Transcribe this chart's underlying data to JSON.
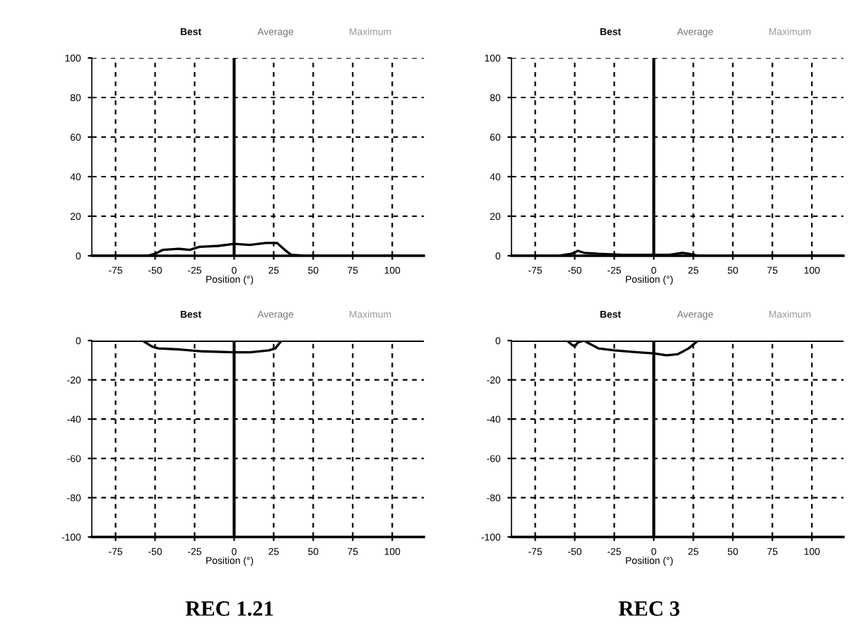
{
  "chart_data": [
    {
      "type": "line",
      "xlabel": "Position (°)",
      "xlim": [
        -90,
        120
      ],
      "ylim": [
        0,
        100
      ],
      "xticks": [
        -75,
        -50,
        -25,
        0,
        25,
        50,
        75,
        100
      ],
      "yticks": [
        0,
        20,
        40,
        60,
        80,
        100
      ],
      "grid": true,
      "annotations": [
        "Best",
        "Average",
        "Maximum"
      ],
      "ref_lines": [
        {
          "axis": "x",
          "value": 0
        }
      ],
      "series": [
        {
          "color": "#000000",
          "x": [
            -90,
            -55,
            -50,
            -45,
            -35,
            -28,
            -22,
            -10,
            0,
            10,
            20,
            27,
            32,
            36,
            45,
            120
          ],
          "values": [
            0,
            0,
            1,
            3,
            3.5,
            3,
            4.5,
            5,
            6,
            5.5,
            6.5,
            6.5,
            3,
            0.5,
            0,
            0
          ]
        }
      ]
    },
    {
      "type": "line",
      "xlabel": "Position (°)",
      "xlim": [
        -90,
        120
      ],
      "ylim": [
        0,
        100
      ],
      "xticks": [
        -75,
        -50,
        -25,
        0,
        25,
        50,
        75,
        100
      ],
      "yticks": [
        0,
        20,
        40,
        60,
        80,
        100
      ],
      "grid": true,
      "annotations": [
        "Best",
        "Average",
        "Maximum"
      ],
      "ref_lines": [
        {
          "axis": "x",
          "value": 0
        }
      ],
      "series": [
        {
          "color": "#000000",
          "x": [
            -90,
            -60,
            -52,
            -48,
            -44,
            -35,
            -20,
            0,
            10,
            18,
            22,
            28,
            120
          ],
          "values": [
            0,
            0,
            1,
            2.5,
            1.5,
            1,
            0.5,
            0.5,
            0.5,
            1.5,
            1,
            0,
            0
          ]
        }
      ]
    },
    {
      "type": "line",
      "xlabel": "Position (°)",
      "xlim": [
        -90,
        120
      ],
      "ylim": [
        -100,
        0
      ],
      "xticks": [
        -75,
        -50,
        -25,
        0,
        25,
        50,
        75,
        100
      ],
      "yticks": [
        -100,
        -80,
        -60,
        -40,
        -20,
        0
      ],
      "grid": true,
      "annotations": [
        "Best",
        "Average",
        "Maximum",
        "REC 1.21"
      ],
      "ref_lines": [
        {
          "axis": "x",
          "value": 0
        },
        {
          "axis": "y",
          "value": 0
        }
      ],
      "series": [
        {
          "color": "#000000",
          "x": [
            -90,
            -58,
            -52,
            -48,
            -35,
            -20,
            0,
            10,
            22,
            26,
            30,
            120
          ],
          "values": [
            0,
            0,
            -3,
            -4,
            -4.5,
            -5.5,
            -6,
            -6,
            -5,
            -4,
            0,
            0
          ]
        }
      ]
    },
    {
      "type": "line",
      "xlabel": "Position (°)",
      "xlim": [
        -90,
        120
      ],
      "ylim": [
        -100,
        0
      ],
      "xticks": [
        -75,
        -50,
        -25,
        0,
        25,
        50,
        75,
        100
      ],
      "yticks": [
        -100,
        -80,
        -60,
        -40,
        -20,
        0
      ],
      "grid": true,
      "annotations": [
        "Best",
        "Average",
        "Maximum",
        "REC 3"
      ],
      "ref_lines": [
        {
          "axis": "x",
          "value": 0
        },
        {
          "axis": "y",
          "value": 0
        }
      ],
      "series": [
        {
          "color": "#000000",
          "x": [
            -90,
            -55,
            -52,
            -50,
            -48,
            -44,
            -42,
            -35,
            -25,
            -10,
            0,
            8,
            15,
            22,
            28,
            120
          ],
          "values": [
            0,
            0,
            -2,
            -3,
            -1,
            0,
            -1,
            -4,
            -5,
            -6,
            -6.5,
            -7.5,
            -7,
            -4,
            0,
            0
          ]
        }
      ]
    }
  ]
}
